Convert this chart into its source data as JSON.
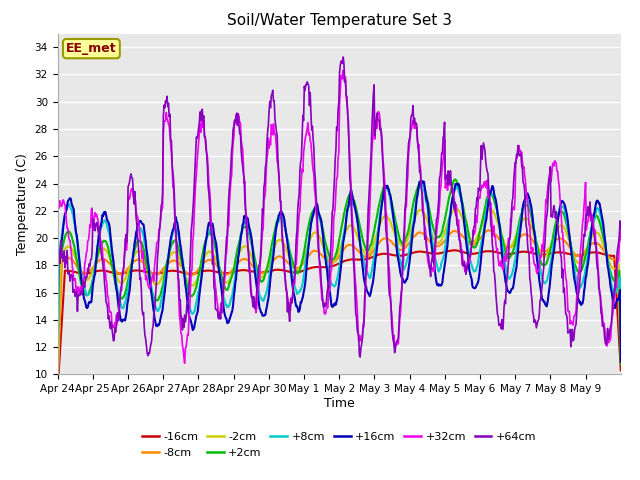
{
  "title": "Soil/Water Temperature Set 3",
  "xlabel": "Time",
  "ylabel": "Temperature (C)",
  "background_color": "#ffffff",
  "plot_bg_color": "#e8e8e8",
  "watermark_text": "EE_met",
  "watermark_fgcolor": "#8b0000",
  "watermark_bgcolor": "#ffff99",
  "watermark_edgecolor": "#999900",
  "series_labels": [
    "-16cm",
    "-8cm",
    "-2cm",
    "+2cm",
    "+8cm",
    "+16cm",
    "+32cm",
    "+64cm"
  ],
  "series_colors": [
    "#cc0000",
    "#ff8800",
    "#cccc00",
    "#00bb00",
    "#00cccc",
    "#0000bb",
    "#ee00ee",
    "#8800bb"
  ],
  "day_labels": [
    "Apr 24",
    "Apr 25",
    "Apr 26",
    "Apr 27",
    "Apr 28",
    "Apr 29",
    "Apr 30",
    "May 1",
    "May 2",
    "May 3",
    "May 4",
    "May 5",
    "May 6",
    "May 7",
    "May 8",
    "May 9"
  ],
  "grid_color": "#ffffff",
  "title_fontsize": 11,
  "axis_fontsize": 9,
  "tick_fontsize": 7.5,
  "legend_fontsize": 8
}
